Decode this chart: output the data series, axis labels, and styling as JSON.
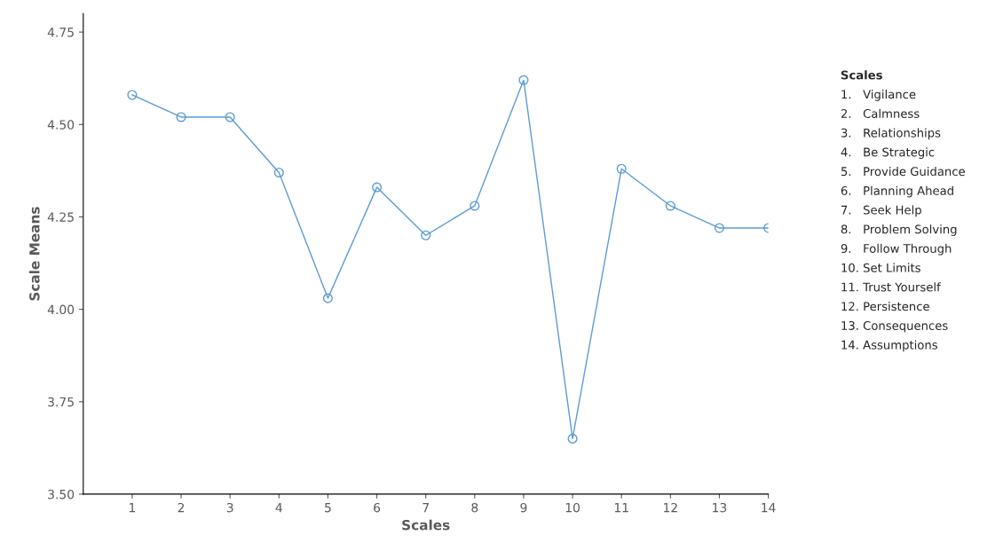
{
  "chart_data": {
    "type": "line",
    "xlabel": "Scales",
    "ylabel": "Scale Means",
    "categories": [
      "1",
      "2",
      "3",
      "4",
      "5",
      "6",
      "7",
      "8",
      "9",
      "10",
      "11",
      "12",
      "13",
      "14"
    ],
    "series": [
      {
        "color": "#5b9bd5",
        "values": [
          4.58,
          4.52,
          4.52,
          4.37,
          4.03,
          4.33,
          4.2,
          4.28,
          4.62,
          3.65,
          4.38,
          4.28,
          4.22,
          4.22
        ]
      }
    ],
    "ylim": [
      3.5,
      4.8
    ],
    "yticks": [
      {
        "value": 3.5,
        "label": "3.50"
      },
      {
        "value": 3.75,
        "label": "3.75"
      },
      {
        "value": 4.0,
        "label": "4.00"
      },
      {
        "value": 4.25,
        "label": "4.25"
      },
      {
        "value": 4.5,
        "label": "4.50"
      },
      {
        "value": 4.75,
        "label": "4.75"
      }
    ],
    "marker": "circle",
    "line_style": "solid",
    "grid": false,
    "legend": false,
    "annotations": [
      "Scales",
      "1.   Vigilance",
      "2.   Calmness",
      "3.   Relationships",
      "4.   Be Strategic",
      "5.   Provide Guidance",
      "6.   Planning Ahead",
      "7.   Seek Help",
      "8.   Problem Solving",
      "9.   Follow Through",
      "10. Set Limits",
      "11. Trust Yourself",
      "12. Persistence",
      "13. Consequences",
      "14. Assumptions"
    ]
  }
}
